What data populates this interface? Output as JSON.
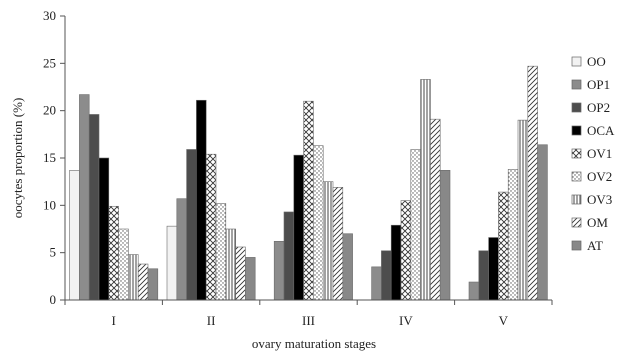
{
  "chart_data": {
    "type": "bar",
    "title": "",
    "xlabel": "ovary maturation stages",
    "ylabel": "oocytes proportion (%)",
    "ylim": [
      0,
      30
    ],
    "yticks": [
      0,
      5,
      10,
      15,
      20,
      25,
      30
    ],
    "grid": false,
    "legend_position": "right",
    "categories": [
      "I",
      "II",
      "III",
      "IV",
      "V"
    ],
    "series": [
      {
        "name": "OO",
        "values": [
          13.7,
          7.8,
          0.0,
          0.0,
          0.0
        ],
        "pattern": "solid",
        "color": "#f2f2f2"
      },
      {
        "name": "OP1",
        "values": [
          21.7,
          10.7,
          6.2,
          3.5,
          1.9
        ],
        "pattern": "solid",
        "color": "#8c8c8c"
      },
      {
        "name": "OP2",
        "values": [
          19.6,
          15.9,
          9.3,
          5.2,
          5.2
        ],
        "pattern": "solid",
        "color": "#4d4d4d"
      },
      {
        "name": "OCA",
        "values": [
          15.0,
          21.1,
          15.3,
          7.9,
          6.6
        ],
        "pattern": "solid",
        "color": "#000000"
      },
      {
        "name": "OV1",
        "values": [
          9.9,
          15.4,
          21.0,
          10.5,
          11.4
        ],
        "pattern": "crosshatch",
        "color": "#ffffff"
      },
      {
        "name": "OV2",
        "values": [
          7.5,
          10.2,
          16.3,
          15.9,
          13.8
        ],
        "pattern": "dots",
        "color": "#ffffff"
      },
      {
        "name": "OV3",
        "values": [
          4.8,
          7.5,
          12.5,
          23.3,
          19.0
        ],
        "pattern": "vlines",
        "color": "#ffffff"
      },
      {
        "name": "OM",
        "values": [
          3.8,
          5.6,
          11.9,
          19.1,
          24.7
        ],
        "pattern": "diagonal",
        "color": "#ffffff"
      },
      {
        "name": "AT",
        "values": [
          3.3,
          4.5,
          7.0,
          13.7,
          16.4
        ],
        "pattern": "solid",
        "color": "#888888"
      }
    ]
  }
}
